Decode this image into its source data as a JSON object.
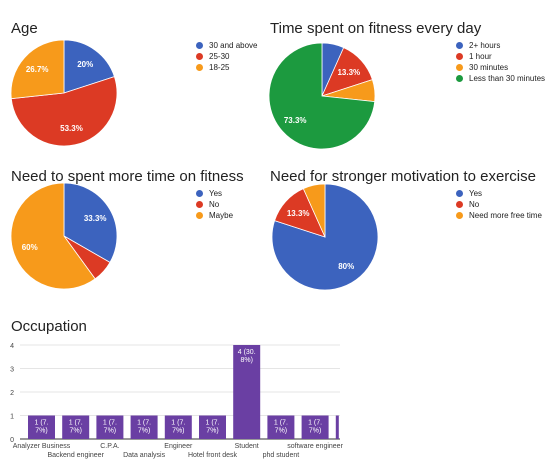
{
  "chart_data": [
    {
      "type": "pie",
      "title": "Age",
      "slices": [
        {
          "label": "30 and above",
          "value": 20,
          "color": "#3c63be",
          "data_label": "20%"
        },
        {
          "label": "25-30",
          "value": 53.3,
          "color": "#dc3a24",
          "data_label": "53.3%"
        },
        {
          "label": "18-25",
          "value": 26.7,
          "color": "#f79a1b",
          "data_label": "26.7%"
        }
      ],
      "legend_position": "right"
    },
    {
      "type": "pie",
      "title": "Time spent on fitness every day",
      "slices": [
        {
          "label": "2+ hours",
          "value": 6.7,
          "color": "#3c63be",
          "data_label": ""
        },
        {
          "label": "1 hour",
          "value": 13.3,
          "color": "#dc3a24",
          "data_label": "13.3%"
        },
        {
          "label": "30 minutes",
          "value": 6.7,
          "color": "#f79a1b",
          "data_label": ""
        },
        {
          "label": "Less than 30 minutes",
          "value": 73.3,
          "color": "#1c9a3f",
          "data_label": "73.3%"
        }
      ],
      "legend_position": "right"
    },
    {
      "type": "pie",
      "title": "Need to spent more time on fitness",
      "slices": [
        {
          "label": "Yes",
          "value": 33.3,
          "color": "#3c63be",
          "data_label": "33.3%"
        },
        {
          "label": "No",
          "value": 6.7,
          "color": "#dc3a24",
          "data_label": ""
        },
        {
          "label": "Maybe",
          "value": 60,
          "color": "#f79a1b",
          "data_label": "60%"
        }
      ],
      "legend_position": "right"
    },
    {
      "type": "pie",
      "title": "Need for stronger motivation to exercise",
      "slices": [
        {
          "label": "Yes",
          "value": 80,
          "color": "#3c63be",
          "data_label": "80%"
        },
        {
          "label": "No",
          "value": 13.3,
          "color": "#dc3a24",
          "data_label": "13.3%"
        },
        {
          "label": "Need more free time",
          "value": 6.7,
          "color": "#f79a1b",
          "data_label": ""
        }
      ],
      "legend_position": "right"
    },
    {
      "type": "bar",
      "title": "Occupation",
      "bar_color": "#6a3fa3",
      "categories": [
        "Analyzer Business",
        "Backend engineer",
        "C.P.A.",
        "Data analysis",
        "Engineer",
        "Hotel front desk",
        "Student",
        "phd student",
        "software engineer",
        ""
      ],
      "values": [
        1,
        1,
        1,
        1,
        1,
        1,
        4,
        1,
        1,
        1
      ],
      "data_labels": [
        "1 (7.7%)",
        "1 (7.7%)",
        "1 (7.7%)",
        "1 (7.7%)",
        "1 (7.7%)",
        "1 (7.7%)",
        "4 (30.8%)",
        "1 (7.7%)",
        "1 (7.7%)",
        ""
      ],
      "yticks": [
        0,
        1,
        2,
        3,
        4
      ],
      "ylim": [
        0,
        4
      ],
      "grid": true
    }
  ]
}
